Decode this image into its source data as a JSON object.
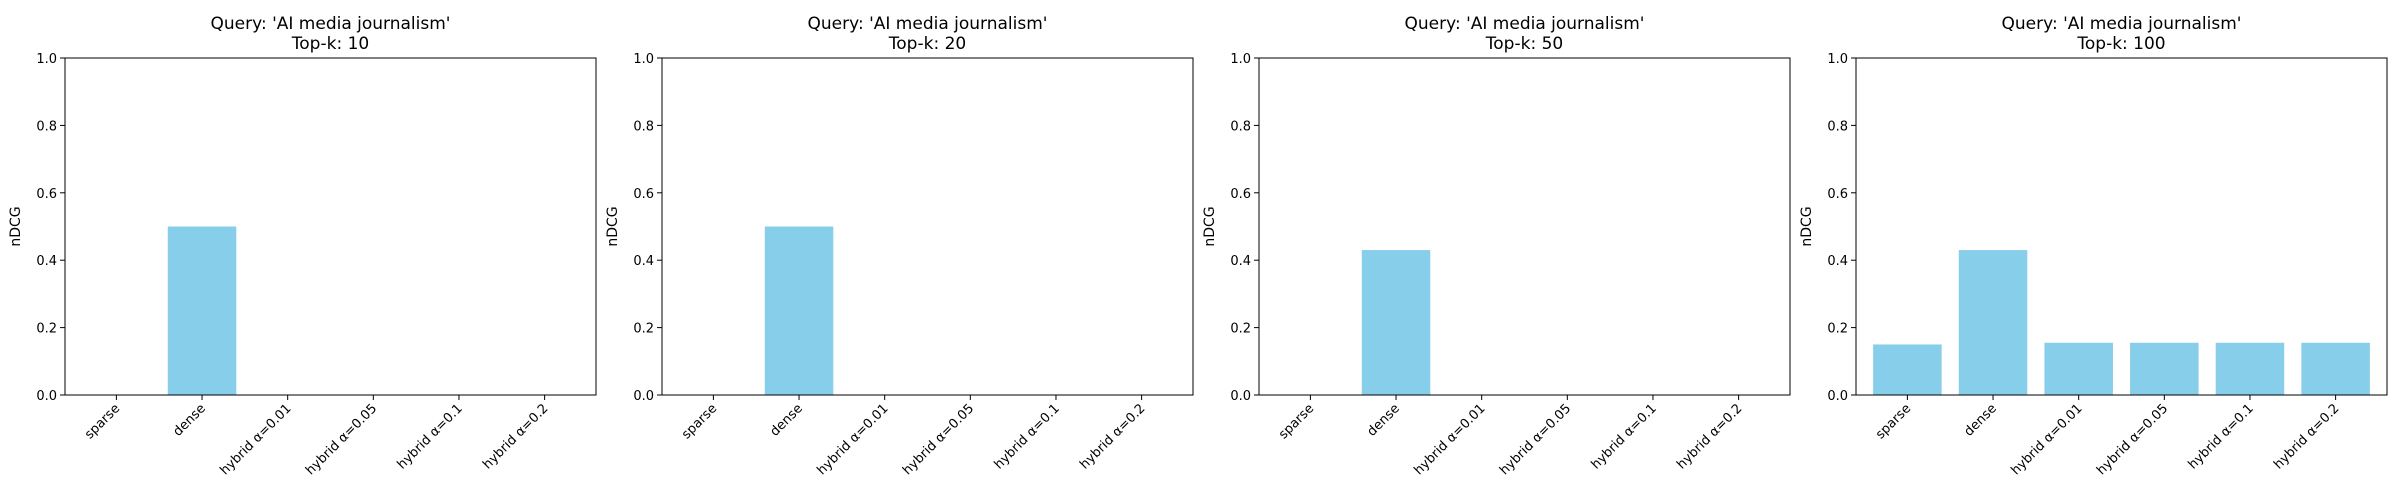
{
  "chart_data": [
    {
      "type": "bar",
      "title_line1": "Query: 'AI media journalism'",
      "title_line2": "Top-k: 10",
      "ylabel": "nDCG",
      "ylim": [
        0,
        1
      ],
      "yticks": [
        "0.0",
        "0.2",
        "0.4",
        "0.6",
        "0.8",
        "1.0"
      ],
      "categories": [
        "sparse",
        "dense",
        "hybrid α=0.01",
        "hybrid α=0.05",
        "hybrid α=0.1",
        "hybrid α=0.2"
      ],
      "values": [
        0.0,
        0.5,
        0.0,
        0.0,
        0.0,
        0.0
      ],
      "bar_color": "#87CEEB",
      "grid": false
    },
    {
      "type": "bar",
      "title_line1": "Query: 'AI media journalism'",
      "title_line2": "Top-k: 20",
      "ylabel": "nDCG",
      "ylim": [
        0,
        1
      ],
      "yticks": [
        "0.0",
        "0.2",
        "0.4",
        "0.6",
        "0.8",
        "1.0"
      ],
      "categories": [
        "sparse",
        "dense",
        "hybrid α=0.01",
        "hybrid α=0.05",
        "hybrid α=0.1",
        "hybrid α=0.2"
      ],
      "values": [
        0.0,
        0.5,
        0.0,
        0.0,
        0.0,
        0.0
      ],
      "bar_color": "#87CEEB",
      "grid": false
    },
    {
      "type": "bar",
      "title_line1": "Query: 'AI media journalism'",
      "title_line2": "Top-k: 50",
      "ylabel": "nDCG",
      "ylim": [
        0,
        1
      ],
      "yticks": [
        "0.0",
        "0.2",
        "0.4",
        "0.6",
        "0.8",
        "1.0"
      ],
      "categories": [
        "sparse",
        "dense",
        "hybrid α=0.01",
        "hybrid α=0.05",
        "hybrid α=0.1",
        "hybrid α=0.2"
      ],
      "values": [
        0.0,
        0.43,
        0.0,
        0.0,
        0.0,
        0.0
      ],
      "bar_color": "#87CEEB",
      "grid": false
    },
    {
      "type": "bar",
      "title_line1": "Query: 'AI media journalism'",
      "title_line2": "Top-k: 100",
      "ylabel": "nDCG",
      "ylim": [
        0,
        1
      ],
      "yticks": [
        "0.0",
        "0.2",
        "0.4",
        "0.6",
        "0.8",
        "1.0"
      ],
      "categories": [
        "sparse",
        "dense",
        "hybrid α=0.01",
        "hybrid α=0.05",
        "hybrid α=0.1",
        "hybrid α=0.2"
      ],
      "values": [
        0.15,
        0.43,
        0.155,
        0.155,
        0.155,
        0.155
      ],
      "bar_color": "#87CEEB",
      "grid": false
    }
  ]
}
